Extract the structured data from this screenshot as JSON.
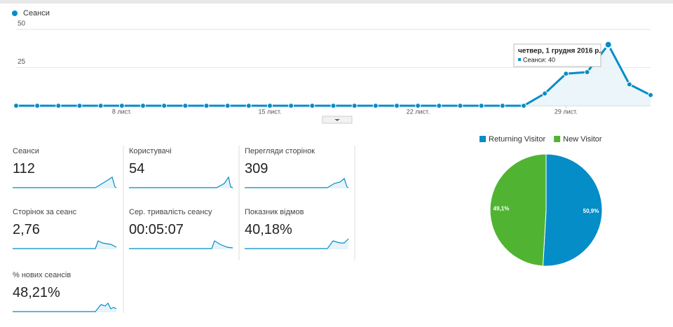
{
  "chart_data": [
    {
      "type": "line",
      "legend": "Сеанси",
      "series": [
        {
          "name": "Сеанси",
          "color": "#058dc7",
          "values": [
            0,
            0,
            0,
            0,
            0,
            0,
            0,
            0,
            0,
            0,
            0,
            0,
            0,
            0,
            0,
            0,
            0,
            0,
            0,
            0,
            0,
            0,
            0,
            0,
            0,
            8,
            21,
            22,
            40,
            14,
            7
          ]
        }
      ],
      "categories": [
        null,
        null,
        null,
        null,
        null,
        "8 лист.",
        null,
        null,
        null,
        null,
        null,
        null,
        "15 лист.",
        null,
        null,
        null,
        null,
        null,
        null,
        "22 лист.",
        null,
        null,
        null,
        null,
        null,
        null,
        "29 лист.",
        null,
        null,
        null,
        null
      ],
      "ylim": [
        0,
        50
      ],
      "yticks": [
        25,
        50
      ],
      "grid": true,
      "tooltip": {
        "title": "четвер, 1 грудня 2016 р.",
        "text": "Сеанси: 40",
        "index": 28
      }
    },
    {
      "type": "pie",
      "categories": [
        "Returning Visitor",
        "New Visitor"
      ],
      "values": [
        50.9,
        49.1
      ],
      "value_labels": [
        "50,9%",
        "49,1%"
      ],
      "colors": [
        "#058dc7",
        "#50b432"
      ]
    }
  ],
  "metrics": [
    {
      "label": "Сеанси",
      "value": "112"
    },
    {
      "label": "Користувачі",
      "value": "54"
    },
    {
      "label": "Перегляди сторінок",
      "value": "309"
    },
    {
      "label": "Сторінок за сеанс",
      "value": "2,76"
    },
    {
      "label": "Сер. тривалість сеансу",
      "value": "00:05:07"
    },
    {
      "label": "Показник відмов",
      "value": "40,18%"
    },
    {
      "label": "% нових сеансів",
      "value": "48,21%"
    }
  ]
}
